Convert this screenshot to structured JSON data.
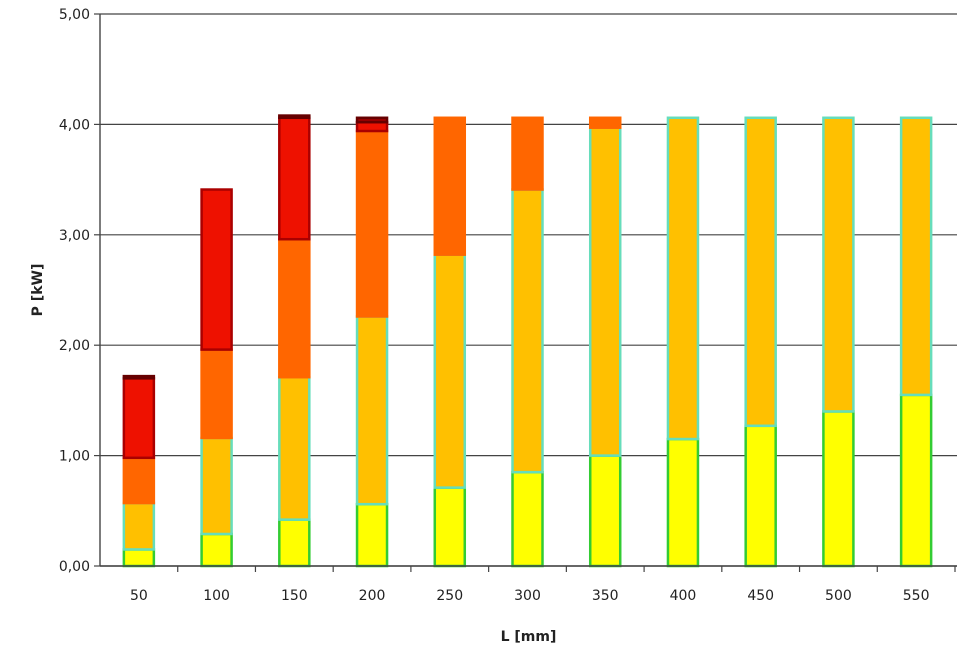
{
  "chart_data": {
    "type": "bar",
    "stacked": true,
    "title": "",
    "xlabel": "L [mm]",
    "ylabel": "P [kW]",
    "ylim": [
      0,
      5
    ],
    "grid": true,
    "y_ticks": [
      "0,00",
      "1,00",
      "2,00",
      "3,00",
      "4,00",
      "5,00"
    ],
    "categories": [
      "50",
      "100",
      "150",
      "200",
      "250",
      "300",
      "350",
      "400",
      "450",
      "500",
      "550"
    ],
    "series": [
      {
        "color": "#ffff00",
        "border": "#33cc33",
        "values": [
          0.15,
          0.29,
          0.42,
          0.56,
          0.71,
          0.85,
          1.0,
          1.15,
          1.27,
          1.4,
          1.55
        ]
      },
      {
        "color": "#ffc000",
        "border": "#66ddbb",
        "values": [
          0.42,
          0.87,
          1.29,
          1.7,
          2.11,
          2.56,
          2.97,
          2.91,
          2.79,
          2.66,
          2.51
        ]
      },
      {
        "color": "#ff6600",
        "border": "#ff6600",
        "values": [
          0.41,
          0.8,
          1.25,
          1.68,
          1.24,
          0.65,
          0.09,
          0,
          0,
          0,
          0
        ]
      },
      {
        "color": "#ee1100",
        "border": "#aa0000",
        "values": [
          0.72,
          1.45,
          1.1,
          0.08,
          0,
          0,
          0,
          0,
          0,
          0,
          0
        ]
      },
      {
        "color": "#990000",
        "border": "#660000",
        "values": [
          0.02,
          0,
          0.02,
          0.04,
          0,
          0,
          0,
          0,
          0,
          0,
          0
        ]
      }
    ]
  }
}
